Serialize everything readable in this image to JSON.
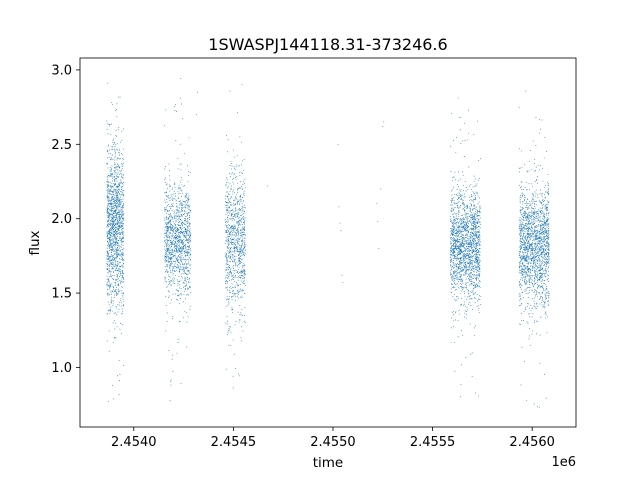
{
  "chart_data": {
    "type": "scatter",
    "title": "1SWASPJ144118.31-373246.6",
    "xlabel": "time",
    "ylabel": "flux",
    "x_offset_label": "1e6",
    "xlim": [
      2453730,
      2456220
    ],
    "ylim": [
      0.6,
      3.08
    ],
    "x_ticks": [
      2454000,
      2454500,
      2455000,
      2455500,
      2456000
    ],
    "x_tick_labels": [
      "2.4540",
      "2.4545",
      "2.4550",
      "2.4555",
      "2.4560"
    ],
    "y_ticks": [
      1.0,
      1.5,
      2.0,
      2.5,
      3.0
    ],
    "y_tick_labels": [
      "1.0",
      "1.5",
      "2.0",
      "2.5",
      "3.0"
    ],
    "grid": false,
    "marker_color": "#1f77b4",
    "series": [
      {
        "clusters": [
          {
            "x_start": 2453865,
            "x_end": 2453950,
            "center": 1.95,
            "spread": 0.28,
            "y_min": 0.75,
            "y_max": 2.95,
            "count": 1400
          },
          {
            "x_start": 2454155,
            "x_end": 2454285,
            "center": 1.85,
            "spread": 0.18,
            "y_min": 0.75,
            "y_max": 2.98,
            "count": 1200
          },
          {
            "x_start": 2454460,
            "x_end": 2454560,
            "center": 1.85,
            "spread": 0.25,
            "y_min": 0.72,
            "y_max": 2.98,
            "count": 900
          },
          {
            "x_start": 2455590,
            "x_end": 2455740,
            "center": 1.82,
            "spread": 0.18,
            "y_min": 0.8,
            "y_max": 2.82,
            "count": 1700
          },
          {
            "x_start": 2455935,
            "x_end": 2456085,
            "center": 1.82,
            "spread": 0.2,
            "y_min": 0.72,
            "y_max": 2.86,
            "count": 1700
          }
        ],
        "sparse_points": [
          {
            "x": 2454670,
            "y": 2.22
          },
          {
            "x": 2455025,
            "y": 2.5
          },
          {
            "x": 2455030,
            "y": 2.08
          },
          {
            "x": 2455035,
            "y": 1.97
          },
          {
            "x": 2455040,
            "y": 1.92
          },
          {
            "x": 2455045,
            "y": 1.62
          },
          {
            "x": 2455050,
            "y": 1.57
          },
          {
            "x": 2455220,
            "y": 2.1
          },
          {
            "x": 2455225,
            "y": 1.98
          },
          {
            "x": 2455230,
            "y": 1.8
          },
          {
            "x": 2455240,
            "y": 2.2
          },
          {
            "x": 2455250,
            "y": 2.62
          },
          {
            "x": 2455255,
            "y": 2.65
          },
          {
            "x": 2454320,
            "y": 2.85
          },
          {
            "x": 2454315,
            "y": 2.7
          }
        ]
      }
    ]
  }
}
